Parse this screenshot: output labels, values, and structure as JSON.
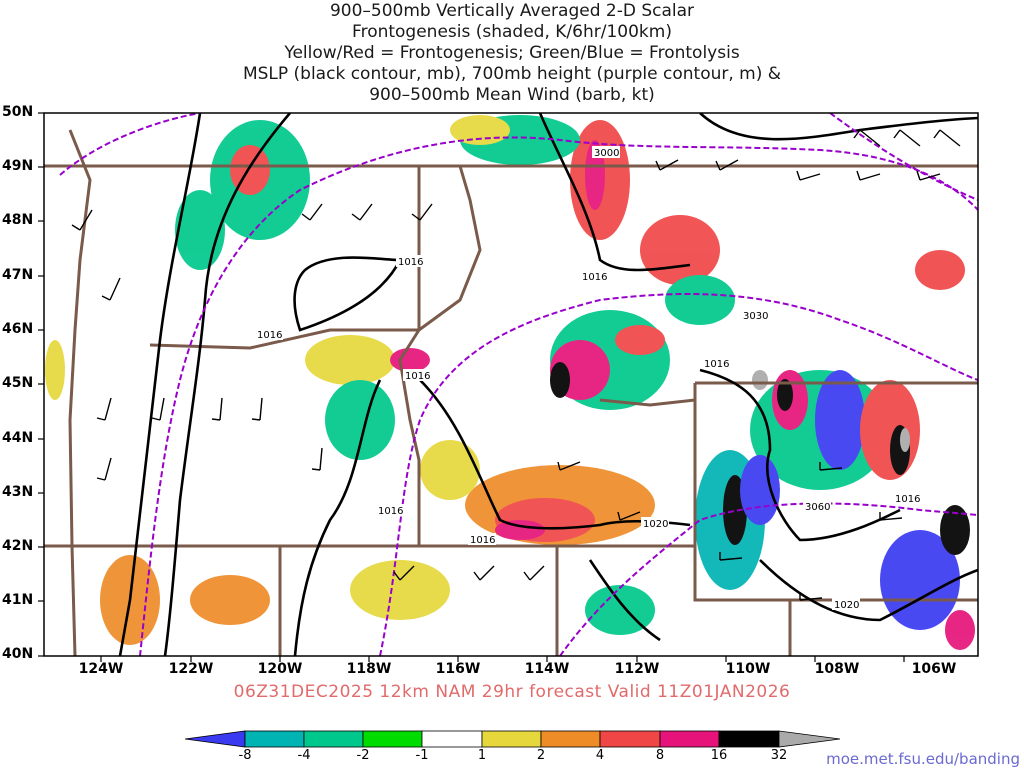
{
  "title_lines": [
    "900–500mb Vertically Averaged 2-D Scalar",
    "Frontogenesis (shaded, K/6hr/100km)",
    "Yellow/Red = Frontogenesis;  Green/Blue = Frontolysis",
    "MSLP (black contour, mb), 700mb height (purple contour, m) &",
    "900–500mb Mean Wind (barb, kt)"
  ],
  "lat_labels": [
    "50N",
    "49N",
    "48N",
    "47N",
    "46N",
    "45N",
    "44N",
    "43N",
    "42N",
    "41N",
    "40N"
  ],
  "lon_labels": [
    "124W",
    "122W",
    "120W",
    "118W",
    "116W",
    "114W",
    "112W",
    "110W",
    "108W",
    "106W"
  ],
  "contour_labels": {
    "mslp": [
      "1016",
      "1016",
      "1016",
      "1016",
      "1016",
      "1016",
      "1016",
      "1020",
      "1020"
    ],
    "height700": [
      "3000",
      "3030",
      "3060"
    ]
  },
  "footer_text": "06Z31DEC2025 12km NAM 29hr forecast Valid 11Z01JAN2026",
  "credit": "moe.met.fsu.edu/banding",
  "colorbar": {
    "labels": [
      "-8",
      "-4",
      "-2",
      "-1",
      "1",
      "2",
      "4",
      "8",
      "16",
      "32"
    ],
    "colors": [
      "#3a3af0",
      "#00b4b4",
      "#00c88c",
      "#00dc00",
      "#ffffff",
      "#e6d83c",
      "#ee8c28",
      "#f04646",
      "#e6147a",
      "#000000",
      "#aaaaaa"
    ]
  },
  "colors": {
    "mslp_contour": "#000000",
    "height_contour": "#9900cc",
    "state_borders": "#7a5a4a",
    "barbs": "#000000"
  }
}
